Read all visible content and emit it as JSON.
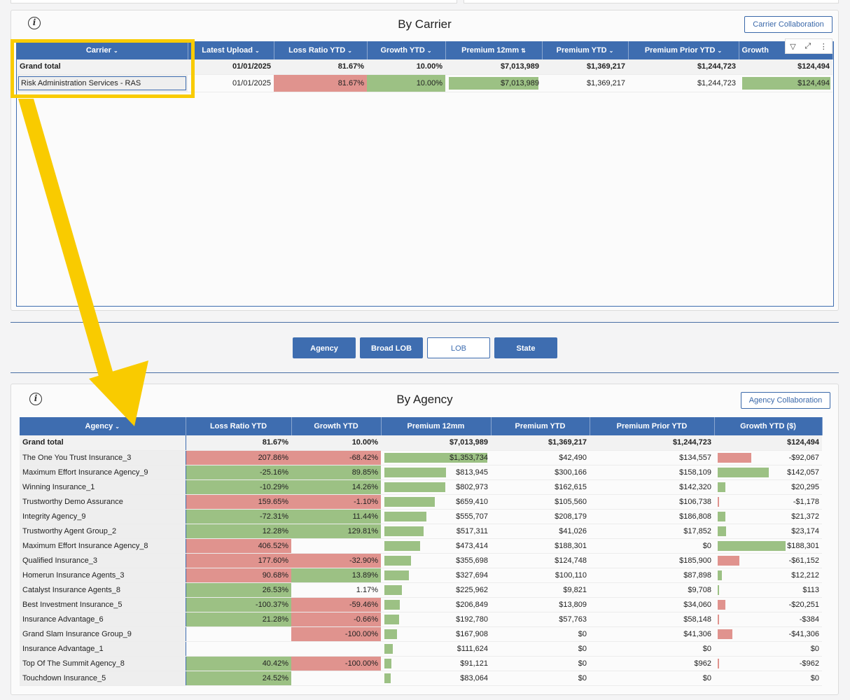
{
  "carrier_panel": {
    "title": "By Carrier",
    "collab_button": "Carrier Collaboration",
    "headers": [
      "Carrier",
      "Latest Upload",
      "Loss Ratio YTD",
      "Growth YTD",
      "Premium 12mm",
      "Premium YTD",
      "Premium Prior YTD",
      "Growth"
    ],
    "grand_total": {
      "name": "Grand total",
      "upload": "01/01/2025",
      "loss": "81.67%",
      "growth": "10.00%",
      "p12": "$7,013,989",
      "pytd": "$1,369,217",
      "pprior": "$1,244,723",
      "gytd": "$124,494"
    },
    "rows": [
      {
        "name": "Risk Administration Services - RAS",
        "upload": "01/01/2025",
        "loss": "81.67%",
        "growth": "10.00%",
        "p12": "$7,013,989",
        "pytd": "$1,369,217",
        "pprior": "$1,244,723",
        "gytd": "$124,494"
      }
    ]
  },
  "segment_buttons": [
    "Agency",
    "Broad LOB",
    "LOB",
    "State"
  ],
  "segment_active": "LOB",
  "agency_panel": {
    "title": "By Agency",
    "collab_button": "Agency Collaboration",
    "headers": [
      "Agency",
      "Loss Ratio YTD",
      "Growth YTD",
      "Premium 12mm",
      "Premium YTD",
      "Premium Prior YTD",
      "Growth YTD ($)"
    ],
    "grand_total": {
      "name": "Grand total",
      "loss": "81.67%",
      "growth": "10.00%",
      "p12": "$7,013,989",
      "pytd": "$1,369,217",
      "pprior": "$1,244,723",
      "gytd": "$124,494"
    },
    "rows": [
      {
        "name": "The One You Trust Insurance_3",
        "loss": "207.86%",
        "lc": "red",
        "growth": "-68.42%",
        "gc": "red",
        "p12": "$1,353,734",
        "p12f": 1.0,
        "pytd": "$42,490",
        "pprior": "$134,557",
        "gytd": "-$92,067",
        "gf": -0.49
      },
      {
        "name": "Maximum Effort Insurance Agency_9",
        "loss": "-25.16%",
        "lc": "green",
        "growth": "89.85%",
        "gc": "green",
        "p12": "$813,945",
        "p12f": 0.6,
        "pytd": "$300,166",
        "pprior": "$158,109",
        "gytd": "$142,057",
        "gf": 0.75
      },
      {
        "name": "Winning Insurance_1",
        "loss": "-10.29%",
        "lc": "green",
        "growth": "14.26%",
        "gc": "green",
        "p12": "$802,973",
        "p12f": 0.59,
        "pytd": "$162,615",
        "pprior": "$142,320",
        "gytd": "$20,295",
        "gf": 0.11
      },
      {
        "name": "Trustworthy Demo Assurance",
        "loss": "159.65%",
        "lc": "red",
        "growth": "-1.10%",
        "gc": "red",
        "p12": "$659,410",
        "p12f": 0.49,
        "pytd": "$105,560",
        "pprior": "$106,738",
        "gytd": "-$1,178",
        "gf": -0.02
      },
      {
        "name": "Integrity Agency_9",
        "loss": "-72.31%",
        "lc": "green",
        "growth": "11.44%",
        "gc": "green",
        "p12": "$555,707",
        "p12f": 0.41,
        "pytd": "$208,179",
        "pprior": "$186,808",
        "gytd": "$21,372",
        "gf": 0.11
      },
      {
        "name": "Trustworthy Agent Group_2",
        "loss": "12.28%",
        "lc": "green",
        "growth": "129.81%",
        "gc": "green",
        "p12": "$517,311",
        "p12f": 0.38,
        "pytd": "$41,026",
        "pprior": "$17,852",
        "gytd": "$23,174",
        "gf": 0.12
      },
      {
        "name": "Maximum Effort Insurance Agency_8",
        "loss": "406.52%",
        "lc": "red",
        "growth": "",
        "gc": "",
        "p12": "$473,414",
        "p12f": 0.35,
        "pytd": "$188,301",
        "pprior": "$0",
        "gytd": "$188,301",
        "gf": 1.0
      },
      {
        "name": "Qualified Insurance_3",
        "loss": "177.60%",
        "lc": "red",
        "growth": "-32.90%",
        "gc": "red",
        "p12": "$355,698",
        "p12f": 0.26,
        "pytd": "$124,748",
        "pprior": "$185,900",
        "gytd": "-$61,152",
        "gf": -0.32
      },
      {
        "name": "Homerun Insurance Agents_3",
        "loss": "90.68%",
        "lc": "red",
        "growth": "13.89%",
        "gc": "green",
        "p12": "$327,694",
        "p12f": 0.24,
        "pytd": "$100,110",
        "pprior": "$87,898",
        "gytd": "$12,212",
        "gf": 0.06
      },
      {
        "name": "Catalyst Insurance Agents_8",
        "loss": "26.53%",
        "lc": "green",
        "growth": "1.17%",
        "gc": "",
        "p12": "$225,962",
        "p12f": 0.17,
        "pytd": "$9,821",
        "pprior": "$9,708",
        "gytd": "$113",
        "gf": 0.01
      },
      {
        "name": "Best Investment Insurance_5",
        "loss": "-100.37%",
        "lc": "green",
        "growth": "-59.46%",
        "gc": "red",
        "p12": "$206,849",
        "p12f": 0.15,
        "pytd": "$13,809",
        "pprior": "$34,060",
        "gytd": "-$20,251",
        "gf": -0.11
      },
      {
        "name": "Insurance Advantage_6",
        "loss": "21.28%",
        "lc": "green",
        "growth": "-0.66%",
        "gc": "red",
        "p12": "$192,780",
        "p12f": 0.14,
        "pytd": "$57,763",
        "pprior": "$58,148",
        "gytd": "-$384",
        "gf": -0.01
      },
      {
        "name": "Grand Slam Insurance Group_9",
        "loss": "",
        "lc": "",
        "growth": "-100.00%",
        "gc": "red",
        "p12": "$167,908",
        "p12f": 0.12,
        "pytd": "$0",
        "pprior": "$41,306",
        "gytd": "-$41,306",
        "gf": -0.22
      },
      {
        "name": "Insurance Advantage_1",
        "loss": "",
        "lc": "",
        "growth": "",
        "gc": "",
        "p12": "$111,624",
        "p12f": 0.08,
        "pytd": "$0",
        "pprior": "$0",
        "gytd": "$0",
        "gf": 0
      },
      {
        "name": "Top Of The Summit Agency_8",
        "loss": "40.42%",
        "lc": "green",
        "growth": "-100.00%",
        "gc": "red",
        "p12": "$91,121",
        "p12f": 0.07,
        "pytd": "$0",
        "pprior": "$962",
        "gytd": "-$962",
        "gf": -0.01
      },
      {
        "name": "Touchdown Insurance_5",
        "loss": "24.52%",
        "lc": "green",
        "growth": "",
        "gc": "",
        "p12": "$83,064",
        "p12f": 0.06,
        "pytd": "$0",
        "pprior": "$0",
        "gytd": "$0",
        "gf": 0
      }
    ]
  },
  "toolbar_icons": [
    "filter-icon",
    "expand-icon",
    "more-icon"
  ],
  "colors": {
    "header_blue": "#3e6db0",
    "cond_red": "#e0938e",
    "cond_green": "#9cc184",
    "highlight_yellow": "#f9cb00"
  }
}
